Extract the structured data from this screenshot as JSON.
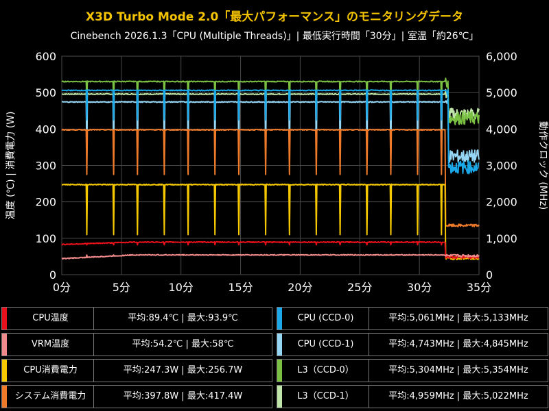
{
  "title": "X3D Turbo Mode 2.0「最大パフォーマンス」のモニタリングデータ",
  "subtitle": "Cinebench 2026.1.3「CPU (Multiple Threads)」| 最低実行時間「30分」| 室温「約26℃」",
  "chart_data": {
    "type": "line",
    "title": "X3D Turbo Mode 2.0「最大パフォーマンス」のモニタリングデータ",
    "subtitle": "Cinebench 2026.1.3「CPU (Multiple Threads)」| 最低実行時間「30分」| 室温「約26℃」",
    "xlabel": "",
    "x_ticks": [
      "0分",
      "5分",
      "10分",
      "15分",
      "20分",
      "25分",
      "30分",
      "35分"
    ],
    "xlim": [
      0,
      35
    ],
    "ylabel_left": "温度 (℃) | 消費電力 (W)",
    "ylim_left": [
      0,
      600
    ],
    "y_ticks_left": [
      "0",
      "100",
      "200",
      "300",
      "400",
      "500",
      "600"
    ],
    "ylabel_right": "動作クロック (MHz)",
    "ylim_right": [
      0,
      6000
    ],
    "y_ticks_right": [
      "0",
      "1,000",
      "2,000",
      "3,000",
      "4,000",
      "5,000",
      "6,000"
    ],
    "grid": true,
    "load_end_min": 32.2,
    "dip_times_min": [
      2.1,
      4.35,
      6.35,
      8.6,
      10.6,
      12.85,
      14.85,
      17.1,
      19.1,
      21.35,
      23.35,
      25.6,
      27.6,
      29.85,
      31.85
    ],
    "series": [
      {
        "name": "CPU温度",
        "axis": "left",
        "color": "#e8101a",
        "load": 89.4,
        "idle": 48,
        "start": 83,
        "dip_to": 82
      },
      {
        "name": "VRM温度",
        "axis": "left",
        "color": "#f08a8a",
        "load": 54.2,
        "idle": 52,
        "start": 44,
        "dip_to": 54
      },
      {
        "name": "CPU消費電力",
        "axis": "left",
        "color": "#f5c800",
        "load": 247.3,
        "idle": 45,
        "dip_to": 110
      },
      {
        "name": "システム消費電力",
        "axis": "left",
        "color": "#ee7a2a",
        "load": 397.8,
        "idle": 135,
        "dip_to": 275
      },
      {
        "name": "CPU (CCD-0)",
        "axis": "right",
        "color": "#1aa8e8",
        "load": 5061,
        "idle": 2950,
        "dip_to": 4250
      },
      {
        "name": "CPU (CCD-1)",
        "axis": "right",
        "color": "#96d6f5",
        "load": 4743,
        "idle": 3250,
        "dip_to": 3200
      },
      {
        "name": "L3（CCD-0）",
        "axis": "right",
        "color": "#7ac043",
        "load": 5304,
        "idle": 4300,
        "dip_to": 4700
      },
      {
        "name": "L3（CCD-1）",
        "axis": "right",
        "color": "#bfe5a8",
        "load": 4959,
        "idle": 4400,
        "dip_to": 4300
      }
    ]
  },
  "legend": [
    {
      "name": "CPU温度",
      "value": "平均:89.4℃ | 最大:93.9℃",
      "color": "#e8101a"
    },
    {
      "name": "VRM温度",
      "value": "平均:54.2℃ | 最大:58℃",
      "color": "#f08a8a"
    },
    {
      "name": "CPU消費電力",
      "value": "平均:247.3W | 最大:256.7W",
      "color": "#f5c800"
    },
    {
      "name": "システム消費電力",
      "value": "平均:397.8W | 最大:417.4W",
      "color": "#ee7a2a"
    },
    {
      "name": "CPU (CCD-0)",
      "value": "平均:5,061MHz | 最大:5,133MHz",
      "color": "#1aa8e8"
    },
    {
      "name": "CPU (CCD-1)",
      "value": "平均:4,743MHz | 最大:4,845MHz",
      "color": "#96d6f5"
    },
    {
      "name": "L3（CCD-0）",
      "value": "平均:5,304MHz | 最大:5,354MHz",
      "color": "#7ac043"
    },
    {
      "name": "L3（CCD-1）",
      "value": "平均:4,959MHz | 最大:5,022MHz",
      "color": "#bfe5a8"
    }
  ]
}
